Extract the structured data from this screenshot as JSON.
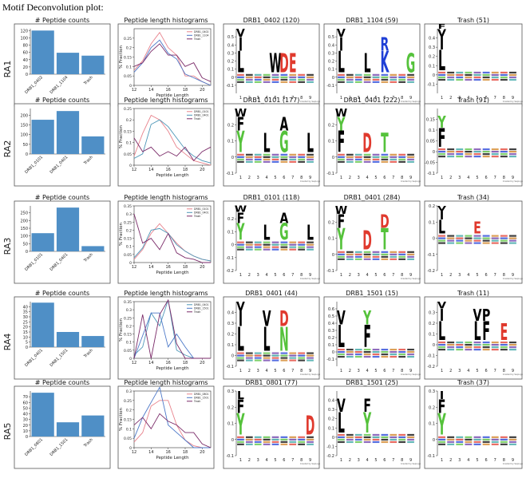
{
  "page": {
    "title": "Motif Deconvolution plot:"
  },
  "panel_titles": {
    "counts": "# Peptide counts",
    "histogram": "Peptide length histograms"
  },
  "histogram_axes": {
    "xlabel": "Peptide Length",
    "ylabel": "% Fraction",
    "xticks": [
      12,
      14,
      16,
      18,
      20
    ],
    "xlim": [
      12,
      21
    ]
  },
  "logo_axes": {
    "positions": [
      "1",
      "2",
      "3",
      "4",
      "5",
      "6",
      "7",
      "8",
      "9"
    ],
    "credit": "Created by SeqLogo"
  },
  "colors": {
    "bar": "#4f8fc6",
    "DRB1_0402": "#e8828c",
    "DRB1_1104": "#4c78c8",
    "DRB1_0101": "#e8828c",
    "DRB1_0401": "#4e97b8",
    "DRB1_1501": "#4c78c8",
    "DRB1_0801": "#e8828c",
    "Trash": "#7a2a68"
  },
  "chart_data": [
    {
      "row": "RA1",
      "counts": {
        "type": "bar",
        "categories": [
          "DRB1_0402",
          "DRB1_1104",
          "Trash"
        ],
        "values": [
          120,
          59,
          51
        ],
        "ylim": [
          0,
          125
        ],
        "yticks": [
          0,
          20,
          40,
          60,
          80,
          100,
          120
        ]
      },
      "histogram": {
        "type": "line",
        "ylim": [
          0,
          0.3
        ],
        "yticks": [
          0.0,
          0.05,
          0.1,
          0.15,
          0.2,
          0.25
        ],
        "x": [
          12,
          13,
          14,
          15,
          16,
          17,
          18,
          19,
          20,
          21
        ],
        "series": [
          {
            "name": "DRB1_0402",
            "values": [
              0.08,
              0.13,
              0.22,
              0.28,
              0.2,
              0.16,
              0.05,
              0.05,
              0.02,
              0.0
            ]
          },
          {
            "name": "DRB1_1104",
            "values": [
              0.07,
              0.12,
              0.2,
              0.24,
              0.17,
              0.14,
              0.06,
              0.04,
              0.02,
              0.0
            ]
          },
          {
            "name": "Trash",
            "values": [
              0.1,
              0.12,
              0.18,
              0.22,
              0.16,
              0.16,
              0.1,
              0.12,
              0.04,
              0.02
            ]
          }
        ]
      },
      "logos": [
        {
          "title": "DRB1_0402 (120)",
          "ymax": 0.6,
          "ymin": -0.2,
          "yticks": [
            -0.1,
            0.0,
            0.1,
            0.2,
            0.3,
            0.4,
            0.5
          ],
          "letters": [
            {
              "pos": 1,
              "chars": [
                "L",
                "I",
                "V"
              ]
            },
            {
              "pos": 5,
              "chars": [
                "W"
              ]
            },
            {
              "pos": 6,
              "chars": [
                "D"
              ]
            },
            {
              "pos": 7,
              "chars": [
                "E"
              ]
            }
          ]
        },
        {
          "title": "DRB1_1104 (59)",
          "ymax": 0.6,
          "ymin": -0.2,
          "yticks": [
            -0.1,
            0.0,
            0.1,
            0.2,
            0.3,
            0.4,
            0.5
          ],
          "letters": [
            {
              "pos": 1,
              "chars": [
                "L",
                "I",
                "V"
              ]
            },
            {
              "pos": 4,
              "chars": [
                "L"
              ]
            },
            {
              "pos": 6,
              "chars": [
                "K",
                "R"
              ]
            },
            {
              "pos": 9,
              "chars": [
                "G"
              ]
            }
          ]
        },
        {
          "title": "Trash (51)",
          "ymax": 0.5,
          "ymin": -0.2,
          "yticks": [
            -0.1,
            0.0,
            0.1,
            0.2,
            0.3,
            0.4
          ],
          "letters": [
            {
              "pos": 1,
              "chars": [
                "L",
                "I",
                "V",
                "F"
              ]
            }
          ]
        }
      ]
    },
    {
      "row": "RA2",
      "counts": {
        "type": "bar",
        "categories": [
          "DRB1_0101",
          "DRB1_0401",
          "Trash"
        ],
        "values": [
          177,
          222,
          91
        ],
        "ylim": [
          0,
          235
        ],
        "yticks": [
          0,
          50,
          100,
          150,
          200
        ]
      },
      "histogram": {
        "type": "line",
        "ylim": [
          0,
          0.25
        ],
        "yticks": [
          0.0,
          0.05,
          0.1,
          0.15,
          0.2,
          0.25
        ],
        "x": [
          12,
          13,
          14,
          15,
          16,
          17,
          18,
          19,
          20,
          21
        ],
        "series": [
          {
            "name": "DRB1_0101",
            "values": [
              0.04,
              0.14,
              0.22,
              0.2,
              0.15,
              0.08,
              0.05,
              0.02,
              0.01,
              0.0
            ]
          },
          {
            "name": "DRB1_0401",
            "values": [
              0.03,
              0.05,
              0.18,
              0.2,
              0.17,
              0.12,
              0.07,
              0.04,
              0.02,
              0.01
            ]
          },
          {
            "name": "Trash",
            "values": [
              0.12,
              0.06,
              0.08,
              0.04,
              0.06,
              0.04,
              0.08,
              0.02,
              0.06,
              0.08
            ]
          }
        ]
      },
      "logos": [
        {
          "title": "DRB1_0101 (177)",
          "ymax": 0.3,
          "ymin": -0.1,
          "yticks": [
            -0.1,
            0.0,
            0.1,
            0.2
          ],
          "letters": [
            {
              "pos": 1,
              "chars": [
                "Y",
                "F",
                "W"
              ]
            },
            {
              "pos": 4,
              "chars": [
                "L"
              ]
            },
            {
              "pos": 6,
              "chars": [
                "G",
                "A"
              ]
            },
            {
              "pos": 9,
              "chars": [
                "L"
              ]
            }
          ]
        },
        {
          "title": "DRB1_0401 (222)",
          "ymax": 0.3,
          "ymin": -0.1,
          "yticks": [
            -0.1,
            0.0,
            0.1,
            0.2
          ],
          "letters": [
            {
              "pos": 1,
              "chars": [
                "F",
                "Y",
                "W"
              ]
            },
            {
              "pos": 4,
              "chars": [
                "D"
              ]
            },
            {
              "pos": 6,
              "chars": [
                "T"
              ]
            }
          ]
        },
        {
          "title": "Trash (91)",
          "ymax": 0.2,
          "ymin": -0.1,
          "yticks": [
            -0.1,
            -0.05,
            0.0,
            0.05,
            0.1,
            0.15
          ],
          "letters": [
            {
              "pos": 1,
              "chars": [
                "F",
                "Y"
              ]
            }
          ]
        }
      ]
    },
    {
      "row": "RA3",
      "counts": {
        "type": "bar",
        "categories": [
          "DRB1_0101",
          "DRB1_0401",
          "Trash"
        ],
        "values": [
          118,
          284,
          34
        ],
        "ylim": [
          0,
          295
        ],
        "yticks": [
          0,
          50,
          100,
          150,
          200,
          250
        ]
      },
      "histogram": {
        "type": "line",
        "ylim": [
          0,
          0.35
        ],
        "yticks": [
          0.0,
          0.05,
          0.1,
          0.15,
          0.2,
          0.25,
          0.3,
          0.35
        ],
        "x": [
          12,
          13,
          14,
          15,
          16,
          17,
          18,
          19,
          20,
          21
        ],
        "series": [
          {
            "name": "DRB1_0101",
            "values": [
              0.02,
              0.08,
              0.18,
              0.24,
              0.18,
              0.12,
              0.07,
              0.04,
              0.02,
              0.01
            ]
          },
          {
            "name": "DRB1_0401",
            "values": [
              0.03,
              0.09,
              0.2,
              0.21,
              0.18,
              0.11,
              0.07,
              0.04,
              0.02,
              0.01
            ]
          },
          {
            "name": "Trash",
            "values": [
              0.3,
              0.12,
              0.15,
              0.08,
              0.18,
              0.06,
              0.03,
              0.02,
              0.0,
              0.0
            ]
          }
        ]
      },
      "logos": [
        {
          "title": "DRB1_0101 (118)",
          "ymax": 0.3,
          "ymin": -0.2,
          "yticks": [
            -0.2,
            -0.1,
            0.0,
            0.1,
            0.2
          ],
          "letters": [
            {
              "pos": 1,
              "chars": [
                "Y",
                "F",
                "W"
              ]
            },
            {
              "pos": 4,
              "chars": [
                "L"
              ]
            },
            {
              "pos": 6,
              "chars": [
                "G",
                "A"
              ]
            },
            {
              "pos": 9,
              "chars": [
                "L"
              ]
            }
          ]
        },
        {
          "title": "DRB1_0401 (284)",
          "ymax": 0.3,
          "ymin": -0.1,
          "yticks": [
            -0.1,
            0.0,
            0.1,
            0.2
          ],
          "letters": [
            {
              "pos": 1,
              "chars": [
                "Y",
                "F",
                "W"
              ]
            },
            {
              "pos": 4,
              "chars": [
                "D"
              ]
            },
            {
              "pos": 6,
              "chars": [
                "T",
                "D"
              ]
            }
          ]
        },
        {
          "title": "Trash (34)",
          "ymax": 0.2,
          "ymin": -0.2,
          "yticks": [
            -0.2,
            -0.1,
            0.0,
            0.1,
            0.2
          ],
          "letters": [
            {
              "pos": 1,
              "chars": [
                "L",
                "I",
                "V"
              ]
            },
            {
              "pos": 5,
              "chars": [
                "E"
              ]
            }
          ]
        }
      ]
    },
    {
      "row": "RA4",
      "counts": {
        "type": "bar",
        "categories": [
          "DRB1_0401",
          "DRB1_1501",
          "Trash"
        ],
        "values": [
          44,
          15,
          11
        ],
        "ylim": [
          0,
          45
        ],
        "yticks": [
          0,
          5,
          10,
          15,
          20,
          25,
          30,
          35,
          40
        ]
      },
      "histogram": {
        "type": "line",
        "ylim": [
          0,
          0.35
        ],
        "yticks": [
          0.0,
          0.05,
          0.1,
          0.15,
          0.2,
          0.25,
          0.3,
          0.35
        ],
        "x": [
          12,
          13,
          14,
          15,
          16,
          17,
          18,
          19,
          20,
          21
        ],
        "series": [
          {
            "name": "DRB1_0401",
            "values": [
              0.02,
              0.07,
              0.28,
              0.2,
              0.36,
              0.05,
              0.02,
              0.0,
              0.0,
              0.0
            ]
          },
          {
            "name": "DRB1_1501",
            "values": [
              0.0,
              0.14,
              0.28,
              0.28,
              0.07,
              0.15,
              0.07,
              0.0,
              0.0,
              0.0
            ]
          },
          {
            "name": "Trash",
            "values": [
              0.0,
              0.27,
              0.0,
              0.27,
              0.36,
              0.09,
              0.0,
              0.0,
              0.0,
              0.0
            ]
          }
        ]
      },
      "logos": [
        {
          "title": "DRB1_0401 (44)",
          "ymax": 0.5,
          "ymin": -0.1,
          "yticks": [
            -0.1,
            0.0,
            0.1,
            0.2,
            0.3,
            0.4
          ],
          "letters": [
            {
              "pos": 1,
              "chars": [
                "L",
                "I",
                "V"
              ]
            },
            {
              "pos": 4,
              "chars": [
                "L",
                "V"
              ]
            },
            {
              "pos": 6,
              "chars": [
                "N",
                "D"
              ]
            }
          ]
        },
        {
          "title": "DRB1_1501 (15)",
          "ymax": 0.7,
          "ymin": -0.2,
          "yticks": [
            -0.1,
            0.0,
            0.1,
            0.2,
            0.3,
            0.4,
            0.5,
            0.6
          ],
          "letters": [
            {
              "pos": 1,
              "chars": [
                "L",
                "V"
              ]
            },
            {
              "pos": 4,
              "chars": [
                "F",
                "Y"
              ]
            }
          ]
        },
        {
          "title": "Trash (11)",
          "ymax": 0.4,
          "ymin": -0.2,
          "yticks": [
            -0.2,
            -0.1,
            0.0,
            0.1,
            0.2,
            0.3
          ],
          "letters": [
            {
              "pos": 1,
              "chars": [
                "L",
                "I",
                "V"
              ]
            },
            {
              "pos": 5,
              "chars": [
                "L",
                "V"
              ]
            },
            {
              "pos": 6,
              "chars": [
                "F",
                "P"
              ]
            },
            {
              "pos": 8,
              "chars": [
                "E"
              ]
            }
          ]
        }
      ]
    },
    {
      "row": "RA5",
      "counts": {
        "type": "bar",
        "categories": [
          "DRB1_0801",
          "DRB1_1501",
          "Trash"
        ],
        "values": [
          77,
          25,
          37
        ],
        "ylim": [
          0,
          80
        ],
        "yticks": [
          0,
          10,
          20,
          30,
          40,
          50,
          60,
          70
        ]
      },
      "histogram": {
        "type": "line",
        "ylim": [
          0,
          0.3
        ],
        "yticks": [
          0.0,
          0.05,
          0.1,
          0.15,
          0.2,
          0.25,
          0.3
        ],
        "x": [
          12,
          13,
          14,
          15,
          16,
          17,
          18,
          19,
          20,
          21
        ],
        "series": [
          {
            "name": "DRB1_0801",
            "values": [
              0.03,
              0.08,
              0.22,
              0.25,
              0.25,
              0.12,
              0.04,
              0.01,
              0.0,
              0.0
            ]
          },
          {
            "name": "DRB1_1501",
            "values": [
              0.05,
              0.16,
              0.24,
              0.32,
              0.12,
              0.08,
              0.04,
              0.0,
              0.0,
              0.0
            ]
          },
          {
            "name": "Trash",
            "values": [
              0.12,
              0.16,
              0.1,
              0.18,
              0.14,
              0.12,
              0.08,
              0.08,
              0.02,
              0.0
            ]
          }
        ]
      },
      "logos": [
        {
          "title": "DRB1_0801 (77)",
          "ymax": 0.3,
          "ymin": -0.1,
          "yticks": [
            -0.1,
            0.0,
            0.1,
            0.2,
            0.3
          ],
          "letters": [
            {
              "pos": 1,
              "chars": [
                "Y",
                "F",
                "L"
              ]
            },
            {
              "pos": 9,
              "chars": [
                "D"
              ]
            }
          ]
        },
        {
          "title": "DRB1_1501 (25)",
          "ymax": 0.5,
          "ymin": -0.2,
          "yticks": [
            -0.2,
            -0.1,
            0.0,
            0.1,
            0.2,
            0.3,
            0.4
          ],
          "letters": [
            {
              "pos": 1,
              "chars": [
                "L",
                "V"
              ]
            },
            {
              "pos": 4,
              "chars": [
                "Y",
                "F"
              ]
            }
          ]
        },
        {
          "title": "Trash (37)",
          "ymax": 0.3,
          "ymin": -0.1,
          "yticks": [
            -0.1,
            0.0,
            0.1,
            0.2,
            0.3
          ],
          "letters": [
            {
              "pos": 1,
              "chars": [
                "Y",
                "F",
                "I"
              ]
            }
          ]
        }
      ]
    }
  ]
}
